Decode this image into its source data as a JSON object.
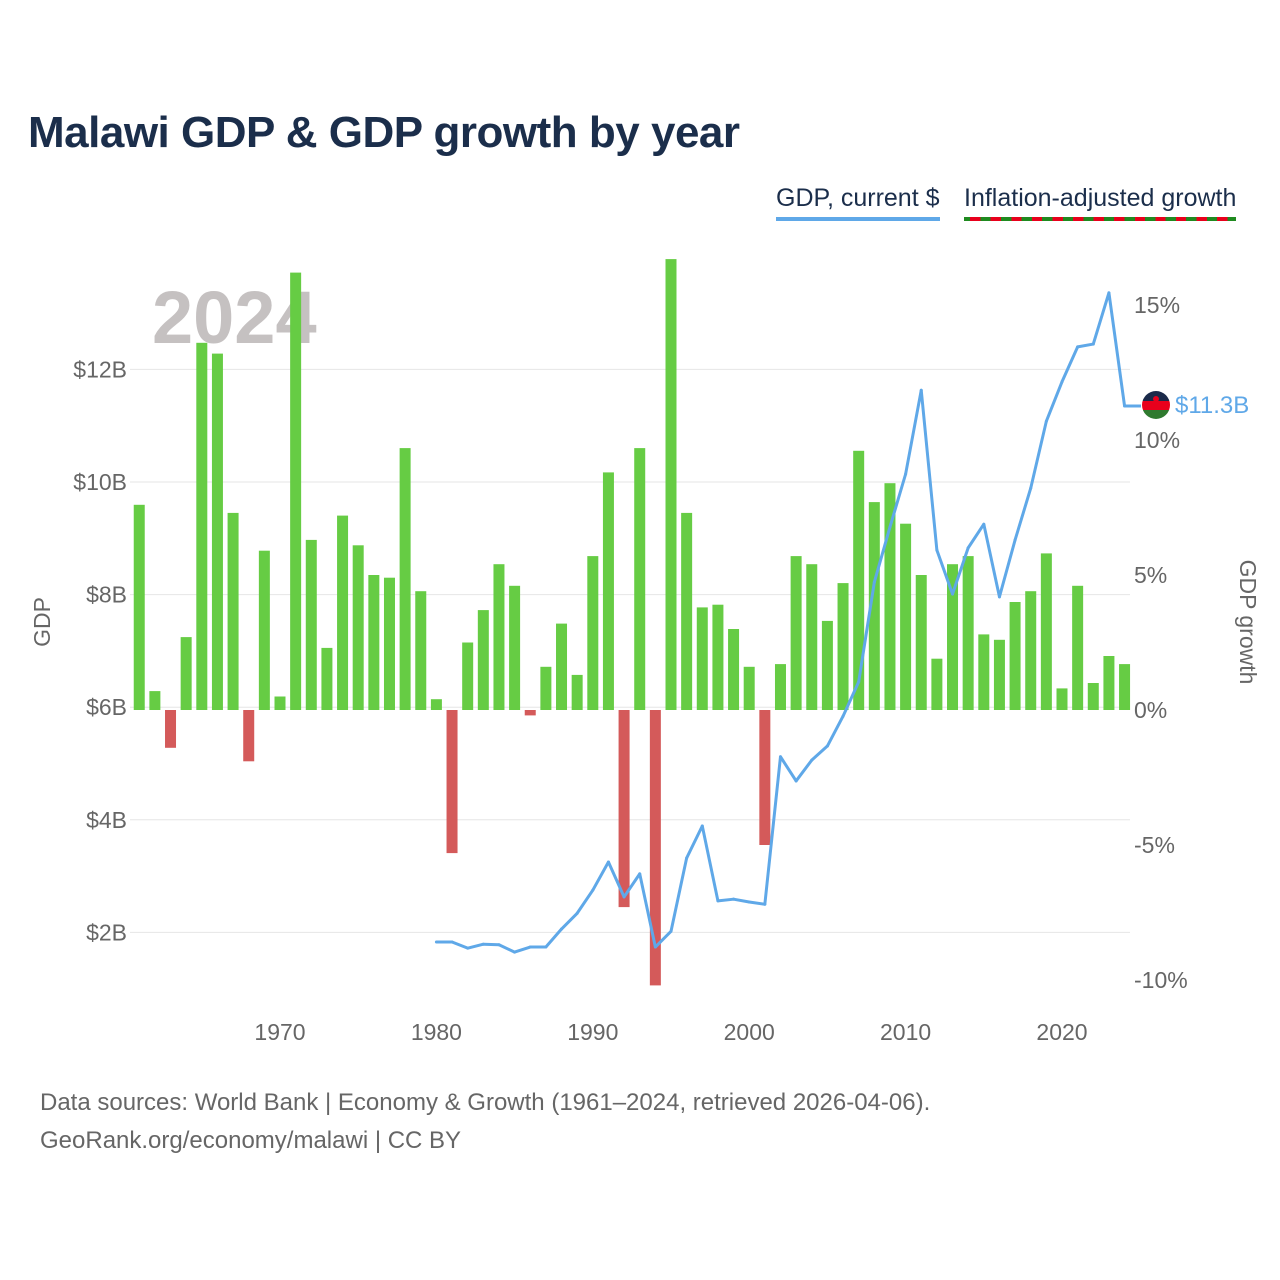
{
  "header": {
    "title": "Malawi GDP & GDP growth by year",
    "legend_gdp": "GDP, current $",
    "legend_growth": "Inflation-adjusted growth"
  },
  "footer": {
    "sources": "Data sources: World Bank | Economy & Growth (1961–2024, retrieved 2026-04-06).",
    "credit": "GeoRank.org/economy/malawi | CC BY"
  },
  "chart_data": {
    "type": "bar+line",
    "title": "Malawi GDP & GDP growth by year",
    "year_watermark": "2024",
    "xlabel": "",
    "ylabel_left": "GDP",
    "ylabel_right": "GDP growth",
    "x_ticks": [
      "1970",
      "1980",
      "1990",
      "2000",
      "2010",
      "2020"
    ],
    "left_ticks": [
      "$2B",
      "$4B",
      "$6B",
      "$8B",
      "$10B",
      "$12B"
    ],
    "left_tick_values": [
      2,
      4,
      6,
      8,
      10,
      12
    ],
    "right_ticks": [
      "-10%",
      "-5%",
      "0%",
      "5%",
      "10%",
      "15%"
    ],
    "right_tick_values": [
      -10,
      -5,
      0,
      5,
      10,
      15
    ],
    "end_label": "$11.3B",
    "colors": {
      "gdp_line": "#5fa8e8",
      "growth_positive": "#66cc44",
      "growth_negative": "#d45a5a"
    },
    "growth": {
      "name": "Inflation-adjusted growth (%)",
      "years": [
        1961,
        1962,
        1963,
        1964,
        1965,
        1966,
        1967,
        1968,
        1969,
        1970,
        1971,
        1972,
        1973,
        1974,
        1975,
        1976,
        1977,
        1978,
        1979,
        1980,
        1981,
        1982,
        1983,
        1984,
        1985,
        1986,
        1987,
        1988,
        1989,
        1990,
        1991,
        1992,
        1993,
        1994,
        1995,
        1996,
        1997,
        1998,
        1999,
        2000,
        2001,
        2002,
        2003,
        2004,
        2005,
        2006,
        2007,
        2008,
        2009,
        2010,
        2011,
        2012,
        2013,
        2014,
        2015,
        2016,
        2017,
        2018,
        2019,
        2020,
        2021,
        2022,
        2023,
        2024
      ],
      "values": [
        7.6,
        0.7,
        -1.4,
        2.7,
        13.6,
        13.2,
        7.3,
        -1.9,
        5.9,
        0.5,
        16.2,
        6.3,
        2.3,
        7.2,
        6.1,
        5.0,
        4.9,
        9.7,
        4.4,
        0.4,
        -5.3,
        2.5,
        3.7,
        5.4,
        4.6,
        -0.2,
        1.6,
        3.2,
        1.3,
        5.7,
        8.8,
        -7.3,
        9.7,
        -10.2,
        16.7,
        7.3,
        3.8,
        3.9,
        3.0,
        1.6,
        -5.0,
        1.7,
        5.7,
        5.4,
        3.3,
        4.7,
        9.6,
        7.7,
        8.4,
        6.9,
        5.0,
        1.9,
        5.4,
        5.7,
        2.8,
        2.6,
        4.0,
        4.4,
        5.8,
        0.8,
        4.6,
        1.0,
        2.0,
        1.7
      ]
    },
    "gdp": {
      "name": "GDP, current $ (billions)",
      "years": [
        1980,
        1981,
        1982,
        1983,
        1984,
        1985,
        1986,
        1987,
        1988,
        1989,
        1990,
        1991,
        1992,
        1993,
        1994,
        1995,
        1996,
        1997,
        1998,
        1999,
        2000,
        2001,
        2002,
        2003,
        2004,
        2005,
        2006,
        2007,
        2008,
        2009,
        2010,
        2011,
        2012,
        2013,
        2014,
        2015,
        2016,
        2017,
        2018,
        2019,
        2020,
        2021,
        2022,
        2023,
        2024
      ],
      "values": [
        1.83,
        1.83,
        1.72,
        1.79,
        1.78,
        1.65,
        1.74,
        1.74,
        2.06,
        2.34,
        2.75,
        3.25,
        2.63,
        3.04,
        1.74,
        2.02,
        3.32,
        3.89,
        2.56,
        2.59,
        2.54,
        2.5,
        5.12,
        4.69,
        5.06,
        5.31,
        5.84,
        6.45,
        8.22,
        9.2,
        10.14,
        11.63,
        8.79,
        8.01,
        8.83,
        9.25,
        7.96,
        8.97,
        9.89,
        11.08,
        11.78,
        12.4,
        12.45,
        13.36,
        11.35
      ]
    }
  }
}
